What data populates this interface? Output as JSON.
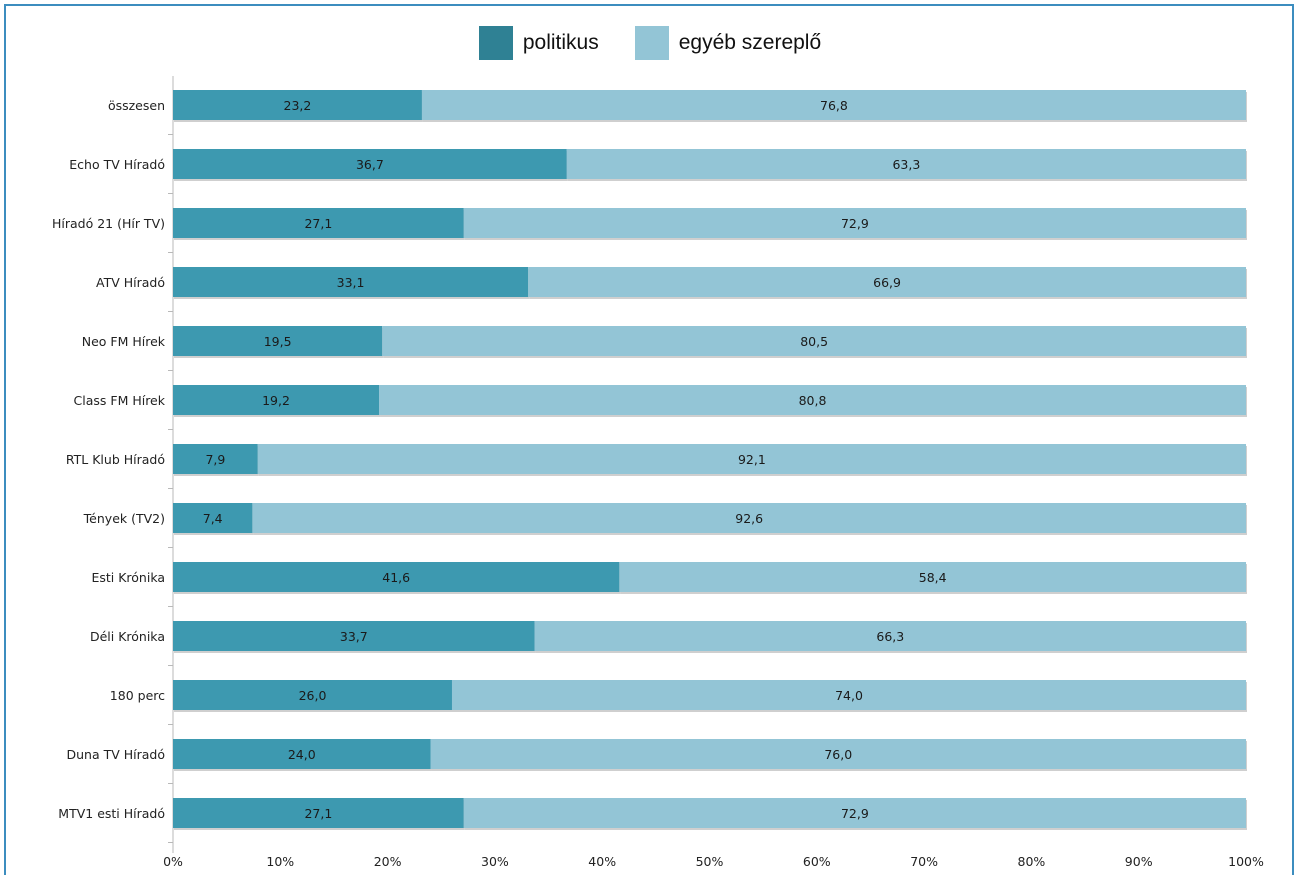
{
  "chart_data": {
    "type": "bar",
    "orientation": "horizontal",
    "stacked": true,
    "categories": [
      "összesen",
      "Echo TV Híradó",
      "Híradó 21 (Hír TV)",
      "ATV Híradó",
      "Neo FM Hírek",
      "Class FM Hírek",
      "RTL Klub Híradó",
      "Tények (TV2)",
      "Esti Krónika",
      "Déli Krónika",
      "180 perc",
      "Duna TV Híradó",
      "MTV1 esti Híradó"
    ],
    "series": [
      {
        "name": "politikus",
        "color": "#3d99b0",
        "values": [
          23.2,
          36.7,
          27.1,
          33.1,
          19.5,
          19.2,
          7.9,
          7.4,
          41.6,
          33.7,
          26.0,
          24.0,
          27.1
        ],
        "labels": [
          "23,2",
          "36,7",
          "27,1",
          "33,1",
          "19,5",
          "19,2",
          "7,9",
          "7,4",
          "41,6",
          "33,7",
          "26,0",
          "24,0",
          "27,1"
        ]
      },
      {
        "name": "egyéb szereplő",
        "color": "#93c5d6",
        "values": [
          76.8,
          63.3,
          72.9,
          66.9,
          80.5,
          80.8,
          92.1,
          92.6,
          58.4,
          66.3,
          74.0,
          76.0,
          72.9
        ],
        "labels": [
          "76,8",
          "63,3",
          "72,9",
          "66,9",
          "80,5",
          "80,8",
          "92,1",
          "92,6",
          "58,4",
          "66,3",
          "74,0",
          "76,0",
          "72,9"
        ]
      }
    ],
    "xlim": [
      0,
      100
    ],
    "xticks": [
      "0%",
      "10%",
      "20%",
      "30%",
      "40%",
      "50%",
      "60%",
      "70%",
      "80%",
      "90%",
      "100%"
    ],
    "legend": {
      "position": "top-center",
      "swatch_colors": [
        "#2f8194",
        "#93c5d6"
      ]
    },
    "grid": false
  }
}
